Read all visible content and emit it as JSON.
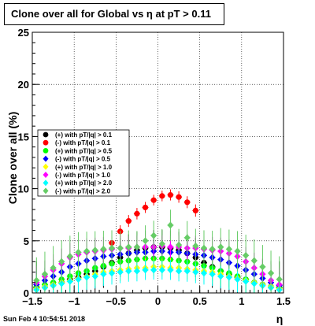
{
  "title": "Clone  over all for Global vs   η at pT > 0.11",
  "footer": "Sun Feb  4 10:54:51 2018",
  "chart_data": {
    "type": "scatter",
    "title": "Clone  over all for Global vs   η at pT > 0.11",
    "xlabel": "η",
    "ylabel": "Clone  over all (%)",
    "xlim": [
      -1.5,
      1.5
    ],
    "ylim": [
      0,
      25
    ],
    "x_ticks": [
      -1.5,
      -1,
      -0.5,
      0,
      0.5,
      1,
      1.5
    ],
    "y_ticks": [
      0,
      5,
      10,
      15,
      20,
      25
    ],
    "x_tick_labels": [
      "−1.5",
      "−1",
      "−0.5",
      "0",
      "0.5",
      "1",
      "1.5"
    ],
    "y_tick_labels": [
      "0",
      "5",
      "10",
      "15",
      "20",
      "25"
    ],
    "grid": true,
    "legend_position": "left-middle",
    "x": [
      -1.45,
      -1.35,
      -1.25,
      -1.15,
      -1.05,
      -0.95,
      -0.85,
      -0.75,
      -0.65,
      -0.55,
      -0.45,
      -0.35,
      -0.25,
      -0.15,
      -0.05,
      0.05,
      0.15,
      0.25,
      0.35,
      0.45,
      0.55,
      0.65,
      0.75,
      0.85,
      0.95,
      1.05,
      1.15,
      1.25,
      1.35,
      1.45
    ],
    "series": [
      {
        "name": "(+) with pT/|q| > 0.1",
        "color": "#000000",
        "marker": "circle",
        "values": [
          0.5,
          0.6,
          0.8,
          1.0,
          1.3,
          1.5,
          1.8,
          2.1,
          2.5,
          2.9,
          3.4,
          3.8,
          4.1,
          4.3,
          4.4,
          4.4,
          4.3,
          4.1,
          3.8,
          3.4,
          2.9,
          2.5,
          2.1,
          1.8,
          1.5,
          1.3,
          1.0,
          0.8,
          0.6,
          0.5
        ]
      },
      {
        "name": "(-) with pT/|q| > 0.1",
        "color": "#ff0000",
        "marker": "circle",
        "values": [
          null,
          null,
          null,
          null,
          null,
          null,
          null,
          null,
          null,
          4.8,
          5.9,
          6.9,
          7.6,
          8.2,
          8.9,
          9.3,
          9.4,
          9.2,
          8.7,
          7.9,
          null,
          null,
          null,
          null,
          null,
          null,
          null,
          null,
          null,
          null
        ]
      },
      {
        "name": "(+) with pT/|q| > 0.5",
        "color": "#00ff00",
        "marker": "circle",
        "values": [
          0.6,
          0.8,
          1.0,
          1.3,
          1.6,
          1.9,
          2.1,
          2.4,
          2.6,
          2.8,
          3.0,
          3.1,
          3.2,
          3.3,
          3.3,
          3.3,
          3.2,
          3.1,
          3.0,
          2.8,
          2.6,
          2.4,
          2.1,
          1.9,
          1.6,
          1.3,
          1.0,
          0.8,
          0.6,
          0.5
        ]
      },
      {
        "name": "(-) with pT/|q| > 0.5",
        "color": "#0000ff",
        "marker": "diamond",
        "values": [
          0.8,
          1.2,
          1.6,
          2.0,
          2.5,
          2.8,
          3.1,
          3.3,
          3.5,
          3.6,
          3.7,
          3.8,
          3.9,
          3.9,
          4.0,
          4.0,
          3.9,
          3.9,
          3.8,
          3.7,
          3.6,
          3.4,
          3.2,
          2.9,
          2.6,
          2.2,
          1.8,
          1.4,
          1.0,
          0.7
        ]
      },
      {
        "name": "(+) with pT/|q| > 1.0",
        "color": "#ffff00",
        "marker": "diamond",
        "values": [
          0.4,
          0.6,
          0.8,
          1.0,
          1.2,
          1.4,
          1.6,
          1.8,
          2.0,
          2.1,
          2.2,
          2.3,
          2.4,
          2.4,
          2.5,
          2.5,
          2.4,
          2.4,
          2.3,
          2.2,
          2.1,
          2.0,
          1.8,
          1.6,
          1.4,
          1.2,
          1.0,
          0.8,
          0.6,
          0.4
        ]
      },
      {
        "name": "(-) with pT/|q| > 1.0",
        "color": "#ff00ff",
        "marker": "diamond",
        "values": [
          1.0,
          1.6,
          2.2,
          2.8,
          3.4,
          3.7,
          3.9,
          4.0,
          4.1,
          4.2,
          4.3,
          4.3,
          4.4,
          4.4,
          4.4,
          4.5,
          4.4,
          4.4,
          4.3,
          4.3,
          4.2,
          4.1,
          4.0,
          3.8,
          3.5,
          3.0,
          2.4,
          1.8,
          1.2,
          0.8
        ]
      },
      {
        "name": "(+) with pT/|q| > 2.0",
        "color": "#00ffff",
        "marker": "diamond",
        "values": [
          0.3,
          0.5,
          0.7,
          0.9,
          1.1,
          1.3,
          1.5,
          1.6,
          1.8,
          1.9,
          2.0,
          2.1,
          2.1,
          2.2,
          2.2,
          2.2,
          2.2,
          2.1,
          2.1,
          2.0,
          1.9,
          1.8,
          1.6,
          1.5,
          1.3,
          1.1,
          0.9,
          0.7,
          0.5,
          0.3
        ]
      },
      {
        "name": "(-) with pT/|q| > 2.0",
        "color": "#66cc66",
        "marker": "diamond",
        "values": [
          1.2,
          1.8,
          2.4,
          3.0,
          3.5,
          3.9,
          4.0,
          4.1,
          4.2,
          4.3,
          4.3,
          4.4,
          4.4,
          5.0,
          5.5,
          4.7,
          6.5,
          4.6,
          5.3,
          4.5,
          4.3,
          4.2,
          4.4,
          4.2,
          4.0,
          3.6,
          3.1,
          2.5,
          1.9,
          1.3
        ]
      }
    ]
  }
}
